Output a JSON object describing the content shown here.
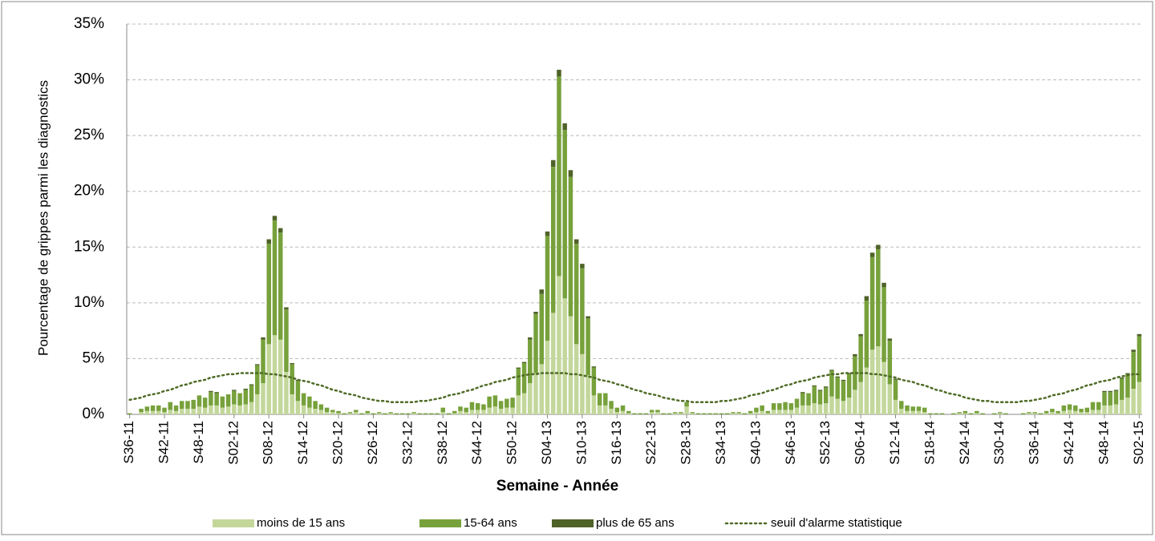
{
  "chart_data": {
    "type": "stacked-bar",
    "ylabel": "Pourcentage de grippes parmi les diagnostics",
    "xlabel": "Semaine - Année",
    "categories": [
      "S36-11",
      null,
      null,
      null,
      null,
      null,
      "S42-11",
      null,
      null,
      null,
      null,
      null,
      "S48-11",
      null,
      null,
      null,
      null,
      null,
      "S02-12",
      null,
      null,
      null,
      null,
      null,
      "S08-12",
      null,
      null,
      null,
      null,
      null,
      "S14-12",
      null,
      null,
      null,
      null,
      null,
      "S20-12",
      null,
      null,
      null,
      null,
      null,
      "S26-12",
      null,
      null,
      null,
      null,
      null,
      "S32-12",
      null,
      null,
      null,
      null,
      null,
      "S38-12",
      null,
      null,
      null,
      null,
      null,
      "S44-12",
      null,
      null,
      null,
      null,
      null,
      "S50-12",
      null,
      null,
      null,
      null,
      null,
      "S04-13",
      null,
      null,
      null,
      null,
      null,
      "S10-13",
      null,
      null,
      null,
      null,
      null,
      "S16-13",
      null,
      null,
      null,
      null,
      null,
      "S22-13",
      null,
      null,
      null,
      null,
      null,
      "S28-13",
      null,
      null,
      null,
      null,
      null,
      "S34-13",
      null,
      null,
      null,
      null,
      null,
      "S40-13",
      null,
      null,
      null,
      null,
      null,
      "S46-13",
      null,
      null,
      null,
      null,
      null,
      "S52-13",
      null,
      null,
      null,
      null,
      null,
      "S06-14",
      null,
      null,
      null,
      null,
      null,
      "S12-14",
      null,
      null,
      null,
      null,
      null,
      "S18-14",
      null,
      null,
      null,
      null,
      null,
      "S24-14",
      null,
      null,
      null,
      null,
      null,
      "S30-14",
      null,
      null,
      null,
      null,
      null,
      "S36-14",
      null,
      null,
      null,
      null,
      null,
      "S42-14",
      null,
      null,
      null,
      null,
      null,
      "S48-14",
      null,
      null,
      null,
      null,
      null,
      "S02-15"
    ],
    "series": [
      {
        "name": "moins de 15 ans",
        "color": "#c3d79b",
        "values": [
          0,
          0,
          0.2,
          0.3,
          0.3,
          0.3,
          0.2,
          0.4,
          0.3,
          0.5,
          0.5,
          0.5,
          0.7,
          0.6,
          0.8,
          0.8,
          0.6,
          0.7,
          0.9,
          0.8,
          0.9,
          1.1,
          1.8,
          2.8,
          6.3,
          7.1,
          6.7,
          3.8,
          1.8,
          1.2,
          0.8,
          0.6,
          0.5,
          0.4,
          0.2,
          0.2,
          0.1,
          0,
          0.1,
          0.2,
          0,
          0.1,
          0,
          0.1,
          0,
          0.1,
          0,
          0,
          0,
          0.1,
          0,
          0,
          0,
          0,
          0.2,
          0,
          0.1,
          0.3,
          0.2,
          0.4,
          0.4,
          0.4,
          0.6,
          0.7,
          0.5,
          0.6,
          0.6,
          1.7,
          1.9,
          2.8,
          3.7,
          4.5,
          6.6,
          9.1,
          12.4,
          10.4,
          8.8,
          6.3,
          5.4,
          3.5,
          1.7,
          0.8,
          0.8,
          0.5,
          0.2,
          0.3,
          0.1,
          0,
          0,
          0,
          0.2,
          0.2,
          0,
          0,
          0.1,
          0.1,
          0.7,
          0.1,
          0,
          0,
          0,
          0,
          0,
          0,
          0.1,
          0.1,
          0,
          0.1,
          0.2,
          0.3,
          0.1,
          0.4,
          0.4,
          0.4,
          0.4,
          0.6,
          0.8,
          0.8,
          1.0,
          0.9,
          1.0,
          1.6,
          1.4,
          1.2,
          1.5,
          2.2,
          2.9,
          4.2,
          5.8,
          6.1,
          4.7,
          2.7,
          1.3,
          0.5,
          0.3,
          0.3,
          0.3,
          0.2,
          0,
          0,
          0,
          0,
          0,
          0.1,
          0.1,
          0,
          0.1,
          0,
          0,
          0,
          0.1,
          0,
          0,
          0,
          0,
          0.1,
          0.1,
          0,
          0.1,
          0.2,
          0.1,
          0.3,
          0.4,
          0.3,
          0.2,
          0.2,
          0.4,
          0.4,
          0.8,
          0.8,
          0.9,
          1.3,
          1.5,
          2.3,
          2.9
        ]
      },
      {
        "name": "15-64 ans",
        "color": "#77a13b",
        "values": [
          0.1,
          0,
          0.3,
          0.4,
          0.5,
          0.5,
          0.4,
          0.7,
          0.5,
          0.7,
          0.7,
          0.8,
          1.0,
          0.9,
          1.2,
          1.1,
          1.0,
          1.1,
          1.2,
          1.1,
          1.3,
          1.5,
          2.6,
          3.9,
          9.0,
          10.3,
          9.6,
          5.6,
          2.7,
          1.8,
          1.1,
          1.0,
          0.7,
          0.5,
          0.4,
          0.2,
          0.2,
          0.1,
          0.1,
          0.2,
          0.1,
          0.2,
          0.1,
          0.1,
          0.1,
          0.1,
          0.1,
          0.1,
          0.1,
          0.1,
          0.1,
          0.1,
          0.1,
          0.1,
          0.4,
          0.1,
          0.2,
          0.4,
          0.4,
          0.7,
          0.6,
          0.5,
          1.0,
          1.0,
          0.7,
          0.8,
          0.9,
          2.4,
          2.7,
          3.9,
          5.3,
          6.3,
          9.4,
          13.1,
          17.9,
          15.1,
          12.5,
          9.0,
          7.7,
          5.1,
          2.5,
          1.1,
          1.1,
          0.7,
          0.4,
          0.5,
          0.2,
          0.1,
          0.1,
          0.1,
          0.2,
          0.2,
          0.1,
          0.1,
          0.1,
          0.1,
          0.4,
          0.1,
          0.1,
          0.1,
          0.1,
          0.1,
          0.1,
          0.1,
          0.1,
          0.1,
          0.1,
          0.2,
          0.4,
          0.5,
          0.2,
          0.6,
          0.6,
          0.7,
          0.6,
          0.8,
          1.1,
          1.1,
          1.5,
          1.2,
          1.4,
          2.3,
          1.9,
          1.8,
          2.1,
          3.0,
          4.1,
          6.0,
          8.3,
          8.7,
          6.7,
          3.9,
          1.8,
          0.7,
          0.5,
          0.4,
          0.4,
          0.4,
          0.1,
          0.1,
          0.1,
          0,
          0.1,
          0.1,
          0.2,
          0.1,
          0.2,
          0.1,
          0,
          0.1,
          0.1,
          0.1,
          0,
          0,
          0.1,
          0.1,
          0.1,
          0.1,
          0.2,
          0.3,
          0.2,
          0.5,
          0.5,
          0.5,
          0.3,
          0.4,
          0.7,
          0.7,
          1.2,
          1.2,
          1.2,
          1.9,
          2.1,
          3.3,
          4.1
        ]
      },
      {
        "name": "plus de 65 ans",
        "color": "#4f6228",
        "values": [
          0,
          0,
          0,
          0,
          0,
          0,
          0,
          0,
          0,
          0,
          0,
          0,
          0,
          0,
          0.1,
          0.1,
          0,
          0,
          0.1,
          0,
          0.1,
          0.1,
          0.1,
          0.2,
          0.4,
          0.4,
          0.4,
          0.2,
          0.1,
          0.1,
          0,
          0,
          0,
          0,
          0,
          0,
          0,
          0,
          0,
          0,
          0,
          0,
          0,
          0,
          0,
          0,
          0,
          0,
          0,
          0,
          0,
          0,
          0,
          0,
          0,
          0,
          0,
          0,
          0,
          0,
          0,
          0,
          0,
          0,
          0,
          0,
          0,
          0.1,
          0.1,
          0.2,
          0.2,
          0.4,
          0.4,
          0.6,
          0.6,
          0.6,
          0.6,
          0.4,
          0.4,
          0.2,
          0.1,
          0,
          0,
          0,
          0,
          0,
          0,
          0,
          0,
          0,
          0,
          0,
          0,
          0,
          0,
          0,
          0,
          0,
          0,
          0,
          0,
          0,
          0,
          0,
          0,
          0,
          0,
          0,
          0,
          0,
          0,
          0,
          0,
          0,
          0,
          0,
          0.1,
          0,
          0.1,
          0.1,
          0.1,
          0.1,
          0.1,
          0.1,
          0.1,
          0.2,
          0.2,
          0.4,
          0.4,
          0.4,
          0.4,
          0.2,
          0.1,
          0,
          0,
          0,
          0,
          0,
          0,
          0,
          0,
          0,
          0,
          0,
          0,
          0,
          0,
          0,
          0,
          0,
          0,
          0,
          0,
          0,
          0,
          0,
          0,
          0,
          0,
          0,
          0,
          0,
          0,
          0,
          0,
          0,
          0,
          0,
          0.1,
          0.1,
          0.1,
          0.1,
          0.1,
          0.2,
          0.2
        ]
      },
      {
        "name": "seuil d'alarme statistique",
        "color": "#4f6b26",
        "type": "line",
        "style": "dotted",
        "values": [
          1.3,
          1.4,
          1.5,
          1.7,
          1.8,
          1.9,
          2.1,
          2.2,
          2.4,
          2.6,
          2.7,
          2.9,
          3.0,
          3.1,
          3.3,
          3.4,
          3.5,
          3.6,
          3.6,
          3.7,
          3.7,
          3.7,
          3.7,
          3.7,
          3.6,
          3.6,
          3.5,
          3.4,
          3.3,
          3.1,
          3.0,
          2.9,
          2.7,
          2.6,
          2.4,
          2.2,
          2.1,
          1.9,
          1.8,
          1.7,
          1.5,
          1.4,
          1.3,
          1.2,
          1.2,
          1.1,
          1.1,
          1.1,
          1.1,
          1.1,
          1.2,
          1.2,
          1.3,
          1.4,
          1.5,
          1.7,
          1.8,
          1.9,
          2.1,
          2.2,
          2.4,
          2.6,
          2.7,
          2.9,
          3.0,
          3.1,
          3.3,
          3.4,
          3.5,
          3.6,
          3.6,
          3.7,
          3.7,
          3.7,
          3.7,
          3.7,
          3.6,
          3.6,
          3.5,
          3.4,
          3.3,
          3.1,
          3.0,
          2.9,
          2.7,
          2.6,
          2.4,
          2.2,
          2.1,
          1.9,
          1.8,
          1.7,
          1.5,
          1.4,
          1.3,
          1.2,
          1.2,
          1.1,
          1.1,
          1.1,
          1.1,
          1.1,
          1.2,
          1.2,
          1.3,
          1.4,
          1.5,
          1.7,
          1.8,
          1.9,
          2.1,
          2.2,
          2.4,
          2.6,
          2.7,
          2.9,
          3.0,
          3.1,
          3.3,
          3.4,
          3.5,
          3.6,
          3.6,
          3.7,
          3.7,
          3.7,
          3.7,
          3.7,
          3.6,
          3.6,
          3.5,
          3.4,
          3.3,
          3.1,
          3.0,
          2.9,
          2.7,
          2.6,
          2.4,
          2.2,
          2.1,
          1.9,
          1.8,
          1.7,
          1.5,
          1.4,
          1.3,
          1.2,
          1.2,
          1.1,
          1.1,
          1.1,
          1.1,
          1.1,
          1.2,
          1.2,
          1.3,
          1.4,
          1.5,
          1.7,
          1.8,
          1.9,
          2.1,
          2.2,
          2.4,
          2.6,
          2.7,
          2.9,
          3.0,
          3.1,
          3.3,
          3.4,
          3.5,
          3.6,
          3.6
        ]
      }
    ],
    "ylim": [
      0,
      35
    ],
    "yticks": [
      {
        "value": 0,
        "label": "0%"
      },
      {
        "value": 5,
        "label": "5%"
      },
      {
        "value": 10,
        "label": "10%"
      },
      {
        "value": 15,
        "label": "15%"
      },
      {
        "value": 20,
        "label": "20%"
      },
      {
        "value": 25,
        "label": "25%"
      },
      {
        "value": 30,
        "label": "30%"
      },
      {
        "value": 35,
        "label": "35%"
      }
    ],
    "grid": true,
    "legend": "bottom"
  }
}
